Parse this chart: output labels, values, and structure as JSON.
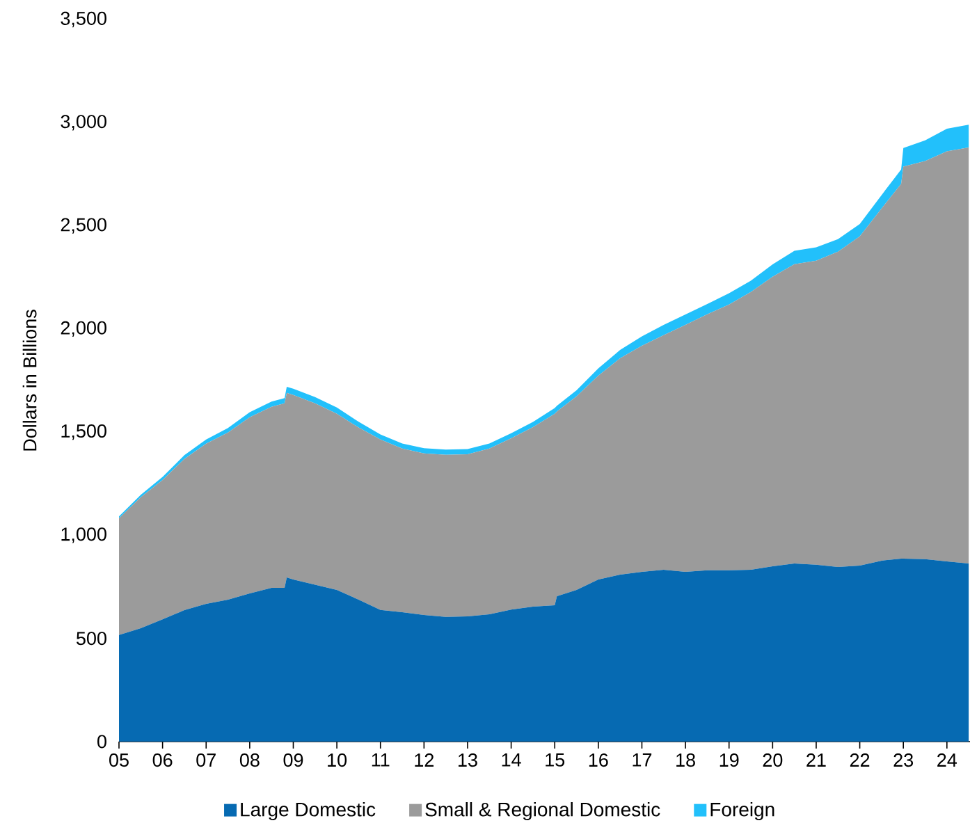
{
  "chart_data": {
    "type": "area",
    "stacked": true,
    "ylabel": "Dollars in Billions",
    "legend": "bottom",
    "x": [
      2005,
      2005.5,
      2006,
      2006.5,
      2007,
      2007.5,
      2008,
      2008.5,
      2008.8,
      2008.85,
      2009,
      2009.5,
      2010,
      2010.5,
      2011,
      2011.5,
      2012,
      2012.5,
      2013,
      2013.5,
      2014,
      2014.5,
      2015,
      2015.05,
      2015.5,
      2016,
      2016.5,
      2017,
      2017.5,
      2018,
      2018.5,
      2019,
      2019.5,
      2020,
      2020.5,
      2021,
      2021.5,
      2022,
      2022.5,
      2022.95,
      2023,
      2023.5,
      2024,
      2024.5
    ],
    "series": [
      {
        "name": "Large Domestic",
        "color": "#066ab2",
        "values": [
          517,
          550,
          593,
          637,
          668,
          688,
          718,
          745,
          745,
          796,
          786,
          760,
          735,
          688,
          638,
          627,
          614,
          604,
          607,
          617,
          640,
          654,
          661,
          705,
          735,
          786,
          809,
          823,
          833,
          823,
          830,
          830,
          833,
          850,
          863,
          857,
          846,
          853,
          877,
          887,
          887,
          884,
          873,
          863
        ]
      },
      {
        "name": "Small & Regional Domestic",
        "color": "#9b9b9b",
        "values": [
          565,
          634,
          675,
          733,
          776,
          810,
          854,
          878,
          895,
          894,
          894,
          880,
          854,
          834,
          826,
          793,
          783,
          786,
          786,
          803,
          830,
          870,
          928,
          895,
          938,
          988,
          1049,
          1096,
          1137,
          1197,
          1241,
          1288,
          1346,
          1403,
          1451,
          1474,
          1529,
          1596,
          1707,
          1816,
          1900,
          1930,
          1988,
          2017
        ]
      },
      {
        "name": "Foreign",
        "color": "#22c0fb",
        "values": [
          10,
          12,
          15,
          18,
          20,
          22,
          25,
          25,
          25,
          30,
          30,
          30,
          30,
          28,
          25,
          25,
          25,
          25,
          25,
          25,
          25,
          25,
          28,
          28,
          30,
          35,
          40,
          45,
          50,
          50,
          50,
          55,
          55,
          60,
          65,
          65,
          60,
          60,
          65,
          70,
          90,
          100,
          110,
          110
        ]
      }
    ],
    "xlim": [
      2005,
      2024.53
    ],
    "ylim": [
      0,
      3500
    ],
    "xticks": [
      {
        "value": 2005,
        "label": "05"
      },
      {
        "value": 2006,
        "label": "06"
      },
      {
        "value": 2007,
        "label": "07"
      },
      {
        "value": 2008,
        "label": "08"
      },
      {
        "value": 2009,
        "label": "09"
      },
      {
        "value": 2010,
        "label": "10"
      },
      {
        "value": 2011,
        "label": "11"
      },
      {
        "value": 2012,
        "label": "12"
      },
      {
        "value": 2013,
        "label": "13"
      },
      {
        "value": 2014,
        "label": "14"
      },
      {
        "value": 2015,
        "label": "15"
      },
      {
        "value": 2016,
        "label": "16"
      },
      {
        "value": 2017,
        "label": "17"
      },
      {
        "value": 2018,
        "label": "18"
      },
      {
        "value": 2019,
        "label": "19"
      },
      {
        "value": 2020,
        "label": "20"
      },
      {
        "value": 2021,
        "label": "21"
      },
      {
        "value": 2022,
        "label": "22"
      },
      {
        "value": 2023,
        "label": "23"
      },
      {
        "value": 2024,
        "label": "24"
      }
    ],
    "yticks": [
      0,
      500,
      {
        "value": 1000,
        "label": "1,000"
      },
      {
        "value": 1500,
        "label": "1,500"
      },
      {
        "value": 2000,
        "label": "2,000"
      },
      {
        "value": 2500,
        "label": "2,500"
      },
      {
        "value": 3000,
        "label": "3,000"
      },
      {
        "value": 3500,
        "label": "3,500"
      }
    ]
  }
}
